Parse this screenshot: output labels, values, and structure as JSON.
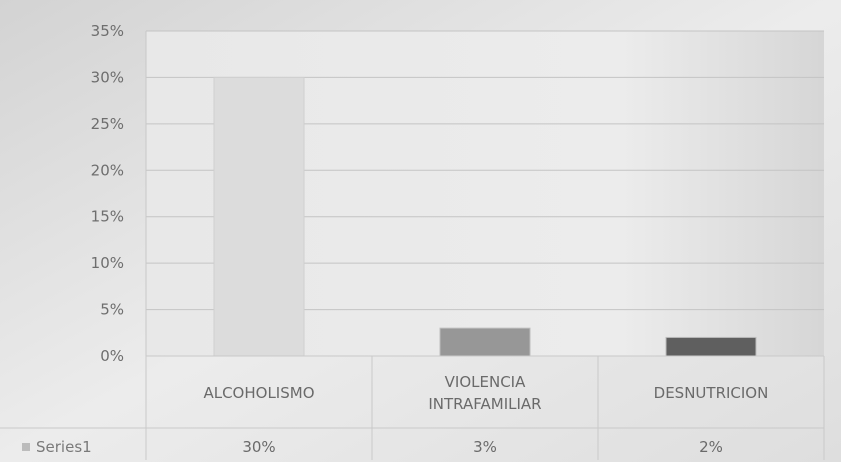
{
  "chart_data": {
    "type": "bar",
    "categories": [
      "ALCOHOLISMO",
      "VIOLENCIA INTRAFAMILIAR",
      "DESNUTRICION"
    ],
    "category_lines": [
      [
        "ALCOHOLISMO"
      ],
      [
        "VIOLENCIA",
        "INTRAFAMILIAR"
      ],
      [
        "DESNUTRICION"
      ]
    ],
    "series": [
      {
        "name": "Series1",
        "values": [
          30,
          3,
          2
        ],
        "value_labels": [
          "30%",
          "3%",
          "2%"
        ],
        "colors": [
          "#dcdcdc",
          "#979797",
          "#5f5f5f"
        ]
      }
    ],
    "yticks": [
      0,
      5,
      10,
      15,
      20,
      25,
      30,
      35
    ],
    "ytick_labels": [
      "0%",
      "5%",
      "10%",
      "15%",
      "20%",
      "25%",
      "30%",
      "35%"
    ],
    "ylim": [
      0,
      35
    ],
    "grid": true,
    "legend": "data-table-left",
    "data_table": true
  }
}
